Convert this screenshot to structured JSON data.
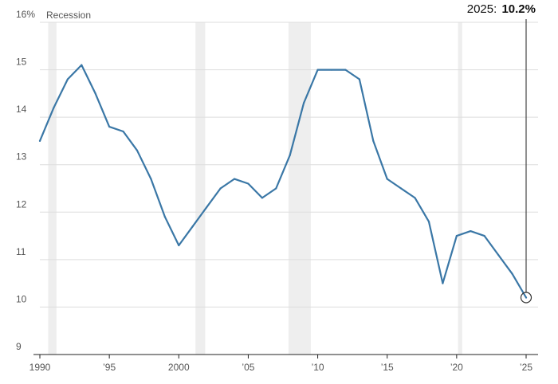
{
  "chart_data": {
    "type": "line",
    "title": "",
    "xlabel": "",
    "ylabel": "",
    "ylim": [
      9,
      16
    ],
    "xlim": [
      1990,
      2025
    ],
    "y_unit": "%",
    "grid": true,
    "y_ticks": [
      9,
      10,
      11,
      12,
      13,
      14,
      15,
      16
    ],
    "y_tick_labels": [
      "9",
      "10",
      "11",
      "12",
      "13",
      "14",
      "15",
      "16%"
    ],
    "x_ticks": [
      1990,
      1995,
      2000,
      2005,
      2010,
      2015,
      2020,
      2025
    ],
    "x_tick_labels": [
      "1990",
      "’95",
      "2000",
      "’05",
      "’10",
      "’15",
      "’20",
      "’25"
    ],
    "legend": {
      "label": "Recession",
      "color": "#eeeeee"
    },
    "recessions": [
      [
        1990.6,
        1991.2
      ],
      [
        2001.2,
        2001.9
      ],
      [
        2007.9,
        2009.5
      ],
      [
        2020.1,
        2020.4
      ]
    ],
    "series": [
      {
        "color": "#3a77a6",
        "x": [
          1990,
          1991,
          1992,
          1993,
          1994,
          1995,
          1996,
          1997,
          1998,
          1999,
          2000,
          2001,
          2002,
          2003,
          2004,
          2005,
          2006,
          2007,
          2008,
          2009,
          2010,
          2011,
          2012,
          2013,
          2014,
          2015,
          2016,
          2017,
          2018,
          2019,
          2020,
          2021,
          2022,
          2023,
          2024,
          2025
        ],
        "values": [
          13.5,
          14.2,
          14.8,
          15.1,
          14.5,
          13.8,
          13.7,
          13.3,
          12.7,
          11.9,
          11.3,
          11.7,
          12.1,
          12.5,
          12.7,
          12.6,
          12.3,
          12.5,
          13.2,
          14.3,
          15.0,
          15.0,
          15.0,
          14.8,
          13.5,
          12.7,
          12.5,
          12.3,
          11.8,
          10.5,
          11.5,
          11.6,
          11.5,
          11.1,
          10.7,
          10.2
        ]
      }
    ],
    "annotation": {
      "label": "2025:",
      "value": "10.2%",
      "x": 2025,
      "y": 10.2
    }
  }
}
